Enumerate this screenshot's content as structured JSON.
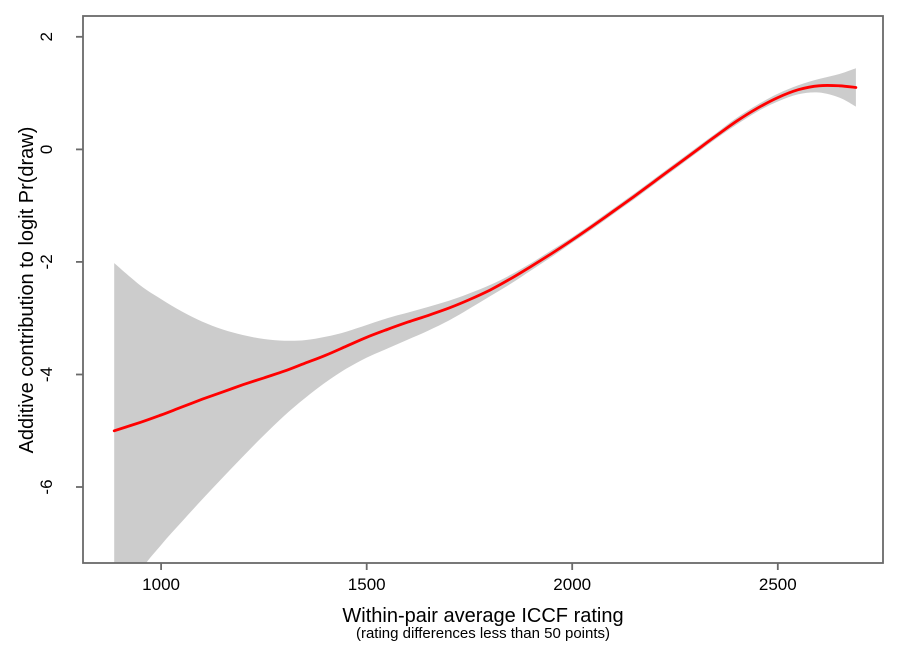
{
  "chart_data": {
    "type": "line",
    "title": "",
    "xlabel": "Within-pair average ICCF rating",
    "xlabel_note": "(rating differences less than 50 points)",
    "ylabel": "Additive contribution to logit Pr(draw)",
    "x_ticks": [
      1000,
      1500,
      2000,
      2500
    ],
    "y_ticks": [
      2,
      0,
      -2,
      -4,
      -6
    ],
    "xlim": [
      810,
      2756
    ],
    "ylim": [
      -7.35,
      2.37
    ],
    "grid": false,
    "legend": "none",
    "line_color": "#ff0000",
    "band_color": "#cccccc",
    "axis_color": "#6a6a6a",
    "text_color": "#000000",
    "x": [
      886,
      950,
      1000,
      1050,
      1100,
      1150,
      1200,
      1250,
      1300,
      1350,
      1400,
      1450,
      1500,
      1550,
      1600,
      1650,
      1700,
      1750,
      1800,
      1850,
      1900,
      1950,
      2000,
      2050,
      2100,
      2150,
      2200,
      2250,
      2300,
      2350,
      2400,
      2450,
      2500,
      2550,
      2600,
      2650,
      2690
    ],
    "series": [
      {
        "name": "smooth_fit",
        "values": [
          -5.0,
          -4.85,
          -4.72,
          -4.58,
          -4.44,
          -4.31,
          -4.18,
          -4.06,
          -3.94,
          -3.8,
          -3.66,
          -3.5,
          -3.34,
          -3.2,
          -3.07,
          -2.95,
          -2.82,
          -2.67,
          -2.5,
          -2.3,
          -2.08,
          -1.85,
          -1.61,
          -1.36,
          -1.1,
          -0.84,
          -0.57,
          -0.3,
          -0.03,
          0.24,
          0.5,
          0.73,
          0.92,
          1.06,
          1.13,
          1.13,
          1.1
        ]
      },
      {
        "name": "ci_upper",
        "values": [
          -2.02,
          -2.42,
          -2.66,
          -2.88,
          -3.06,
          -3.2,
          -3.3,
          -3.37,
          -3.4,
          -3.39,
          -3.33,
          -3.24,
          -3.12,
          -3.0,
          -2.9,
          -2.8,
          -2.69,
          -2.56,
          -2.41,
          -2.23,
          -2.02,
          -1.79,
          -1.56,
          -1.31,
          -1.05,
          -0.79,
          -0.52,
          -0.25,
          0.02,
          0.29,
          0.56,
          0.79,
          0.99,
          1.14,
          1.25,
          1.34,
          1.44
        ]
      },
      {
        "name": "ci_lower",
        "values": [
          -8.4,
          -7.5,
          -7.03,
          -6.62,
          -6.22,
          -5.83,
          -5.45,
          -5.08,
          -4.73,
          -4.42,
          -4.14,
          -3.9,
          -3.7,
          -3.54,
          -3.38,
          -3.22,
          -3.04,
          -2.83,
          -2.61,
          -2.39,
          -2.15,
          -1.91,
          -1.66,
          -1.41,
          -1.15,
          -0.89,
          -0.62,
          -0.35,
          -0.08,
          0.19,
          0.44,
          0.67,
          0.85,
          0.98,
          1.01,
          0.92,
          0.76
        ]
      }
    ]
  }
}
